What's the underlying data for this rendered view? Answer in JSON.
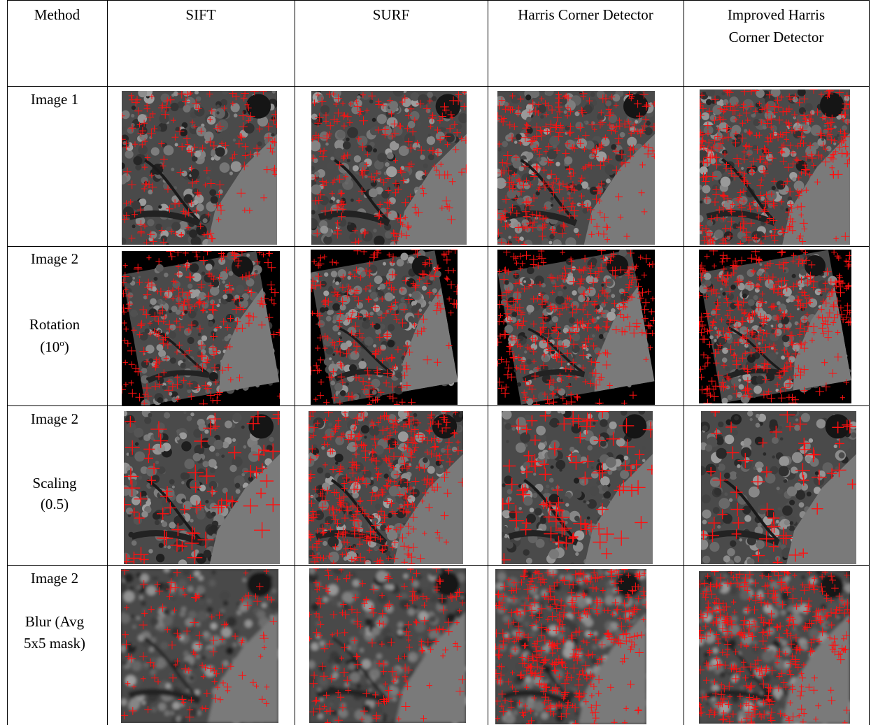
{
  "header": {
    "method": "Method",
    "col1": "SIFT",
    "col2": "SURF",
    "col3": "Harris Corner Detector",
    "col4_line1": "Improved Harris",
    "col4_line2": "Corner Detector"
  },
  "rows": [
    {
      "line1": "Image 1",
      "line2": "",
      "line3": ""
    },
    {
      "line1": "Image 2",
      "line2": "Rotation",
      "line3": "(10",
      "sup": "o",
      "line3_tail": ")"
    },
    {
      "line1": "Image 2",
      "line2": "Scaling",
      "line3": "(0.5)"
    },
    {
      "line1": "Image 2",
      "line2": "Blur (Avg",
      "line3": "5x5 mask)"
    }
  ],
  "colors": {
    "marker": "#ff1010",
    "border": "#000000",
    "background": "#ffffff"
  }
}
